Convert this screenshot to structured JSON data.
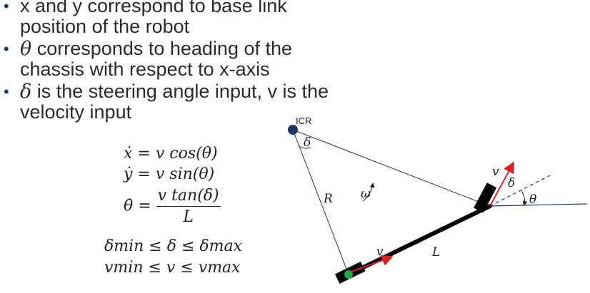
{
  "bullets": [
    {
      "pre": "x and y correspond to base link",
      "sym": "",
      "post": "",
      "line2": "position of the robot"
    },
    {
      "pre": "",
      "sym": "θ",
      "post": " corresponds to heading of the",
      "line2": "chassis with respect to x-axis"
    },
    {
      "pre": "",
      "sym": "δ",
      "post": " is the steering angle input, v is the",
      "line2": "velocity input"
    }
  ],
  "equations": {
    "xdot_lhs": "ẋ",
    "xdot_rhs": " = v cos(θ)",
    "ydot_lhs": "ẏ",
    "ydot_rhs": " = v sin(θ)",
    "thetadot_lhs": "θ̇ =",
    "thetadot_num": "v tan(δ)",
    "thetadot_den": "L",
    "delta_bounds": "δmin ≤ δ ≤ δmax",
    "v_bounds": "vmin ≤ v ≤ vmax"
  },
  "diagram": {
    "icr_label": "ICR",
    "delta_at_icr": "δ",
    "radius_label": "R",
    "omega_label": "ω",
    "rear_velocity_label": "v",
    "wheelbase_label": "L",
    "front_velocity_label": "v",
    "steer_angle_label": "δ",
    "heading_label": "θ",
    "colors": {
      "icr": "#1f3864",
      "velocity": "#e02020",
      "rear_axle_point": "#22aa44",
      "lines": "#1f3864",
      "body": "#000000"
    }
  }
}
